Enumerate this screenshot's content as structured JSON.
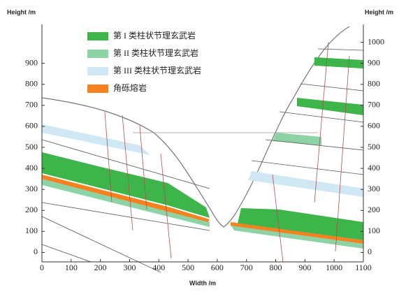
{
  "chart_data": {
    "type": "cross-section",
    "y_label": "Height /m",
    "y2_label": "Height /m",
    "x_label": "Width /m",
    "xlim": [
      0,
      1100
    ],
    "xticks": [
      0,
      100,
      200,
      300,
      400,
      500,
      600,
      700,
      800,
      900,
      1000,
      1100
    ],
    "ylim": [
      -45,
      1085
    ],
    "yticks": [
      0,
      100,
      200,
      300,
      400,
      500,
      600,
      700,
      800,
      900
    ],
    "y2lim": [
      -45,
      1085
    ],
    "y2ticks": [
      0,
      100,
      200,
      300,
      400,
      500,
      600,
      700,
      800,
      900,
      1000
    ],
    "legend": [
      {
        "name": "第 I 类柱状节理玄武岩",
        "color": "#3db54a"
      },
      {
        "name": "第 II 类柱状节理玄武岩",
        "color": "#8ed3a6"
      },
      {
        "name": "第 III 类柱状节理玄武岩",
        "color": "#cfe8f4"
      },
      {
        "name": "角砾熔岩",
        "color": "#f5821f"
      }
    ]
  }
}
